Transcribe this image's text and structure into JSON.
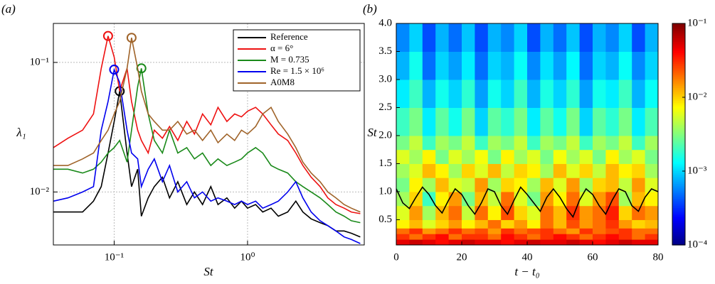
{
  "chart_data": [
    {
      "type": "line",
      "panel_label": "(a)",
      "xlabel": "St",
      "ylabel": "λ₁",
      "xscale": "log",
      "yscale": "log",
      "grid": true,
      "legend": "upper right",
      "xlim": [
        0.035,
        7.5
      ],
      "ylim": [
        0.0039,
        0.2
      ],
      "xticks": [
        {
          "value": 0.1,
          "label": "10⁻¹"
        },
        {
          "value": 1,
          "label": "10⁰"
        }
      ],
      "yticks": [
        {
          "value": 0.01,
          "label": "10⁻²"
        },
        {
          "value": 0.1,
          "label": "10⁻¹"
        }
      ],
      "x": [
        0.035,
        0.045,
        0.058,
        0.07,
        0.08,
        0.09,
        0.1,
        0.11,
        0.125,
        0.135,
        0.15,
        0.16,
        0.18,
        0.2,
        0.23,
        0.26,
        0.3,
        0.35,
        0.4,
        0.46,
        0.53,
        0.6,
        0.7,
        0.8,
        0.9,
        1.0,
        1.15,
        1.3,
        1.5,
        1.7,
        2.0,
        2.3,
        2.6,
        3.0,
        3.5,
        4.0,
        4.6,
        5.3,
        6.0,
        7.0
      ],
      "series": [
        {
          "name": "Reference",
          "color": "#000000",
          "values": [
            0.007,
            0.007,
            0.007,
            0.0085,
            0.011,
            0.02,
            0.035,
            0.06,
            0.02,
            0.011,
            0.015,
            0.0065,
            0.009,
            0.011,
            0.013,
            0.009,
            0.012,
            0.008,
            0.01,
            0.008,
            0.011,
            0.008,
            0.009,
            0.0075,
            0.0085,
            0.0075,
            0.008,
            0.007,
            0.0075,
            0.0065,
            0.007,
            0.0085,
            0.007,
            0.0062,
            0.0058,
            0.0055,
            0.005,
            0.005,
            0.0048,
            0.0045
          ]
        },
        {
          "name": "α = 6°",
          "color": "#ee1111",
          "values": [
            0.022,
            0.026,
            0.03,
            0.04,
            0.09,
            0.16,
            0.11,
            0.06,
            0.09,
            0.05,
            0.03,
            0.025,
            0.02,
            0.03,
            0.026,
            0.032,
            0.025,
            0.035,
            0.028,
            0.04,
            0.033,
            0.045,
            0.035,
            0.04,
            0.038,
            0.042,
            0.045,
            0.04,
            0.033,
            0.028,
            0.025,
            0.02,
            0.016,
            0.013,
            0.011,
            0.009,
            0.008,
            0.0075,
            0.007,
            0.0068
          ]
        },
        {
          "name": "M = 0.735",
          "color": "#1a8a1a",
          "values": [
            0.015,
            0.015,
            0.014,
            0.015,
            0.017,
            0.02,
            0.022,
            0.025,
            0.017,
            0.03,
            0.065,
            0.09,
            0.04,
            0.025,
            0.02,
            0.03,
            0.02,
            0.022,
            0.018,
            0.02,
            0.016,
            0.018,
            0.016,
            0.017,
            0.018,
            0.02,
            0.022,
            0.02,
            0.016,
            0.015,
            0.014,
            0.012,
            0.011,
            0.01,
            0.009,
            0.008,
            0.007,
            0.0065,
            0.006,
            0.0058
          ]
        },
        {
          "name": "Re = 1.5 × 10⁶",
          "color": "#0000ee",
          "values": [
            0.0085,
            0.009,
            0.01,
            0.011,
            0.03,
            0.05,
            0.088,
            0.07,
            0.03,
            0.02,
            0.018,
            0.011,
            0.015,
            0.018,
            0.012,
            0.016,
            0.01,
            0.012,
            0.009,
            0.01,
            0.0085,
            0.009,
            0.0085,
            0.008,
            0.0085,
            0.008,
            0.0085,
            0.0075,
            0.008,
            0.0085,
            0.01,
            0.012,
            0.009,
            0.007,
            0.006,
            0.0055,
            0.005,
            0.0045,
            0.0043,
            0.004
          ]
        },
        {
          "name": "A0M8",
          "color": "#a0642a",
          "values": [
            0.016,
            0.016,
            0.018,
            0.02,
            0.025,
            0.03,
            0.04,
            0.05,
            0.09,
            0.155,
            0.09,
            0.06,
            0.04,
            0.035,
            0.03,
            0.03,
            0.035,
            0.028,
            0.03,
            0.025,
            0.03,
            0.024,
            0.028,
            0.025,
            0.03,
            0.028,
            0.032,
            0.04,
            0.045,
            0.035,
            0.028,
            0.022,
            0.017,
            0.014,
            0.012,
            0.01,
            0.009,
            0.008,
            0.0075,
            0.007
          ]
        }
      ]
    },
    {
      "type": "heatmap",
      "panel_label": "(b)",
      "xlabel": "t − t₀",
      "ylabel": "St",
      "colormap": "jet",
      "color_scale": "log",
      "xlim": [
        0,
        80
      ],
      "ylim": [
        0.05,
        4.0
      ],
      "xticks": [
        0,
        20,
        40,
        60,
        80
      ],
      "yticks": [
        0.5,
        {
          "value": 1.0,
          "label": "1.0"
        },
        1.5,
        {
          "value": 2.0,
          "label": "2.0"
        },
        2.5,
        {
          "value": 3.0,
          "label": "3.0"
        },
        3.5,
        {
          "value": 4.0,
          "label": "4.0"
        }
      ],
      "clim": [
        0.0001,
        0.1
      ],
      "colorbar_ticks": [
        {
          "value": 0.1,
          "label": "10⁻¹"
        },
        {
          "value": 0.01,
          "label": "10⁻²"
        },
        {
          "value": 0.001,
          "label": "10⁻³"
        },
        {
          "value": 0.0001,
          "label": "10⁻⁴"
        }
      ],
      "x_bins": [
        0,
        4,
        8,
        12,
        16,
        20,
        24,
        28,
        32,
        36,
        40,
        44,
        48,
        52,
        56,
        60,
        64,
        68,
        72,
        76,
        80
      ],
      "y_bins": [
        0.05,
        0.15,
        0.25,
        0.35,
        0.5,
        0.75,
        1.0,
        1.25,
        1.5,
        1.75,
        2.0,
        2.5,
        3.0,
        3.5,
        4.0
      ],
      "z": [
        [
          0.05,
          0.06,
          0.05,
          0.04,
          0.05,
          0.06,
          0.05,
          0.05,
          0.04,
          0.05,
          0.06,
          0.05,
          0.05,
          0.06,
          0.05,
          0.04,
          0.05,
          0.06,
          0.05,
          0.05
        ],
        [
          0.03,
          0.02,
          0.03,
          0.04,
          0.02,
          0.03,
          0.03,
          0.02,
          0.04,
          0.03,
          0.02,
          0.03,
          0.04,
          0.03,
          0.02,
          0.03,
          0.04,
          0.03,
          0.02,
          0.03
        ],
        [
          0.02,
          0.03,
          0.015,
          0.02,
          0.03,
          0.02,
          0.025,
          0.015,
          0.03,
          0.02,
          0.025,
          0.03,
          0.02,
          0.015,
          0.03,
          0.02,
          0.025,
          0.03,
          0.02,
          0.02
        ],
        [
          0.008,
          0.012,
          0.006,
          0.01,
          0.015,
          0.008,
          0.012,
          0.02,
          0.01,
          0.015,
          0.008,
          0.02,
          0.012,
          0.025,
          0.015,
          0.02,
          0.03,
          0.015,
          0.01,
          0.012
        ],
        [
          0.006,
          0.015,
          0.004,
          0.012,
          0.02,
          0.005,
          0.02,
          0.008,
          0.025,
          0.01,
          0.006,
          0.02,
          0.012,
          0.03,
          0.015,
          0.02,
          0.035,
          0.01,
          0.02,
          0.015
        ],
        [
          0.004,
          0.01,
          0.002,
          0.008,
          0.015,
          0.003,
          0.012,
          0.005,
          0.02,
          0.006,
          0.003,
          0.015,
          0.008,
          0.02,
          0.006,
          0.015,
          0.025,
          0.004,
          0.012,
          0.008
        ],
        [
          0.003,
          0.008,
          0.004,
          0.012,
          0.006,
          0.005,
          0.015,
          0.004,
          0.01,
          0.008,
          0.004,
          0.012,
          0.006,
          0.015,
          0.004,
          0.01,
          0.012,
          0.005,
          0.015,
          0.006
        ],
        [
          0.004,
          0.006,
          0.012,
          0.008,
          0.004,
          0.01,
          0.006,
          0.012,
          0.005,
          0.01,
          0.008,
          0.004,
          0.012,
          0.006,
          0.01,
          0.005,
          0.012,
          0.008,
          0.01,
          0.004
        ],
        [
          0.006,
          0.004,
          0.008,
          0.003,
          0.006,
          0.004,
          0.007,
          0.003,
          0.008,
          0.004,
          0.006,
          0.003,
          0.007,
          0.004,
          0.006,
          0.003,
          0.008,
          0.004,
          0.006,
          0.003
        ],
        [
          0.003,
          0.005,
          0.002,
          0.004,
          0.003,
          0.005,
          0.002,
          0.004,
          0.003,
          0.005,
          0.002,
          0.004,
          0.003,
          0.005,
          0.002,
          0.004,
          0.003,
          0.005,
          0.002,
          0.004
        ],
        [
          0.002,
          0.003,
          0.0012,
          0.0025,
          0.0015,
          0.003,
          0.001,
          0.0025,
          0.0018,
          0.003,
          0.0012,
          0.0025,
          0.0015,
          0.003,
          0.001,
          0.0025,
          0.0018,
          0.003,
          0.0012,
          0.0022
        ],
        [
          0.0012,
          0.002,
          0.0008,
          0.0015,
          0.001,
          0.0018,
          0.0007,
          0.0015,
          0.001,
          0.002,
          0.0008,
          0.0016,
          0.001,
          0.0018,
          0.0007,
          0.0015,
          0.0012,
          0.002,
          0.0008,
          0.0014
        ],
        [
          0.0008,
          0.0015,
          0.0005,
          0.001,
          0.0007,
          0.0012,
          0.0005,
          0.001,
          0.0008,
          0.0014,
          0.0006,
          0.0011,
          0.0007,
          0.0013,
          0.0005,
          0.001,
          0.0008,
          0.0014,
          0.0006,
          0.001
        ],
        [
          0.0006,
          0.001,
          0.0004,
          0.0008,
          0.0005,
          0.0009,
          0.0004,
          0.0008,
          0.0006,
          0.001,
          0.0004,
          0.0008,
          0.0005,
          0.0009,
          0.0004,
          0.0008,
          0.0006,
          0.001,
          0.0004,
          0.0008
        ]
      ],
      "line": {
        "color": "#000000",
        "x": [
          0,
          2,
          4,
          6,
          8,
          10,
          12,
          14,
          16,
          18,
          20,
          22,
          24,
          26,
          28,
          30,
          32,
          34,
          36,
          38,
          40,
          42,
          44,
          46,
          48,
          50,
          52,
          54,
          56,
          58,
          60,
          62,
          64,
          66,
          68,
          70,
          72,
          74,
          76,
          78,
          80
        ],
        "values": [
          1.05,
          0.8,
          0.7,
          0.9,
          1.08,
          0.95,
          0.75,
          0.62,
          0.85,
          1.05,
          0.95,
          0.75,
          0.6,
          0.8,
          1.05,
          1.0,
          0.75,
          0.6,
          0.85,
          1.08,
          0.95,
          0.8,
          0.65,
          0.9,
          1.05,
          0.9,
          0.7,
          0.55,
          0.85,
          1.05,
          0.95,
          0.75,
          0.6,
          0.85,
          1.05,
          1.0,
          0.75,
          0.65,
          0.9,
          1.05,
          1.0
        ]
      }
    }
  ]
}
